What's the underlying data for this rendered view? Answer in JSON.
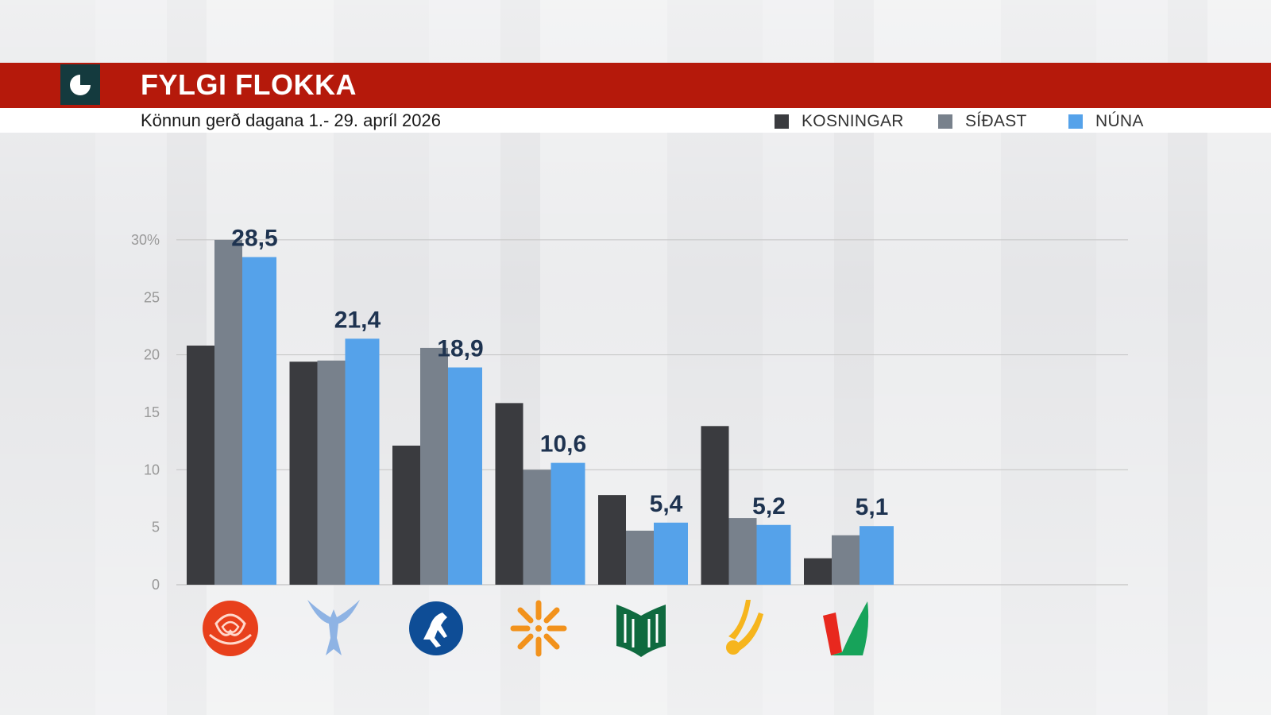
{
  "header": {
    "title": "FYLGI FLOKKA",
    "subtitle": "Könnun gerð dagana 1.- 29. apríl 2026"
  },
  "legend": [
    {
      "label": "KOSNINGAR",
      "color": "#3a3b3f"
    },
    {
      "label": "SÍÐAST",
      "color": "#78818c"
    },
    {
      "label": "NÚNA",
      "color": "#55a2ea"
    }
  ],
  "chart_data": {
    "type": "bar",
    "categories": [
      "party-rose",
      "party-falcon",
      "party-horse",
      "party-sun",
      "party-book",
      "party-hands",
      "party-v"
    ],
    "category_icons": [
      "rose-icon",
      "falcon-icon",
      "horse-icon",
      "sun-icon",
      "book-icon",
      "hands-icon",
      "v-icon"
    ],
    "series": [
      {
        "name": "KOSNINGAR",
        "color": "#3a3b3f",
        "values": [
          20.8,
          19.4,
          12.1,
          15.8,
          7.8,
          13.8,
          2.3
        ]
      },
      {
        "name": "SÍÐAST",
        "color": "#78818c",
        "values": [
          30.0,
          19.5,
          20.6,
          10.0,
          4.7,
          5.8,
          4.3
        ]
      },
      {
        "name": "NÚNA",
        "color": "#55a2ea",
        "values": [
          28.5,
          21.4,
          18.9,
          10.6,
          5.4,
          5.2,
          5.1
        ]
      }
    ],
    "data_labels": [
      "28,5",
      "21,4",
      "18,9",
      "10,6",
      "5,4",
      "5,2",
      "5,1"
    ],
    "y_ticks": [
      0,
      5,
      10,
      15,
      20,
      25,
      30
    ],
    "y_tick_labels": [
      "0",
      "5",
      "10",
      "15",
      "20",
      "25",
      "30%"
    ],
    "ylim": [
      0,
      30
    ],
    "grid": true,
    "legend_position": "top-right"
  }
}
